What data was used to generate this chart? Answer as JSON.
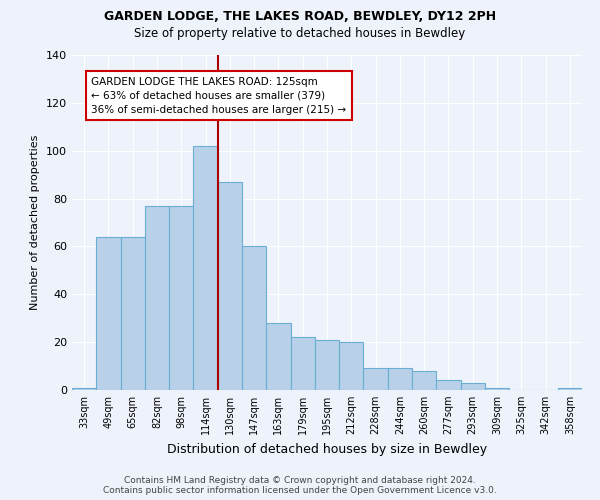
{
  "title": "GARDEN LODGE, THE LAKES ROAD, BEWDLEY, DY12 2PH",
  "subtitle": "Size of property relative to detached houses in Bewdley",
  "xlabel": "Distribution of detached houses by size in Bewdley",
  "ylabel": "Number of detached properties",
  "footer_line1": "Contains HM Land Registry data © Crown copyright and database right 2024.",
  "footer_line2": "Contains public sector information licensed under the Open Government Licence v3.0.",
  "categories": [
    "33sqm",
    "49sqm",
    "65sqm",
    "82sqm",
    "98sqm",
    "114sqm",
    "130sqm",
    "147sqm",
    "163sqm",
    "179sqm",
    "195sqm",
    "212sqm",
    "228sqm",
    "244sqm",
    "260sqm",
    "277sqm",
    "293sqm",
    "309sqm",
    "325sqm",
    "342sqm",
    "358sqm"
  ],
  "values": [
    1,
    64,
    64,
    77,
    77,
    102,
    87,
    60,
    28,
    22,
    21,
    20,
    9,
    9,
    8,
    4,
    3,
    1,
    0,
    0,
    1
  ],
  "bar_color": "#b8d0e8",
  "bar_edge_color": "#6aaed6",
  "background_color": "#eef2fb",
  "grid_color": "#ffffff",
  "ref_line_bin_index": 6,
  "reference_line_color": "#aa0000",
  "annotation_text": "GARDEN LODGE THE LAKES ROAD: 125sqm\n← 63% of detached houses are smaller (379)\n36% of semi-detached houses are larger (215) →",
  "annotation_box_color": "#ffffff",
  "annotation_box_edge_color": "#cc0000",
  "ylim": [
    0,
    140
  ],
  "yticks": [
    0,
    20,
    40,
    60,
    80,
    100,
    120,
    140
  ]
}
